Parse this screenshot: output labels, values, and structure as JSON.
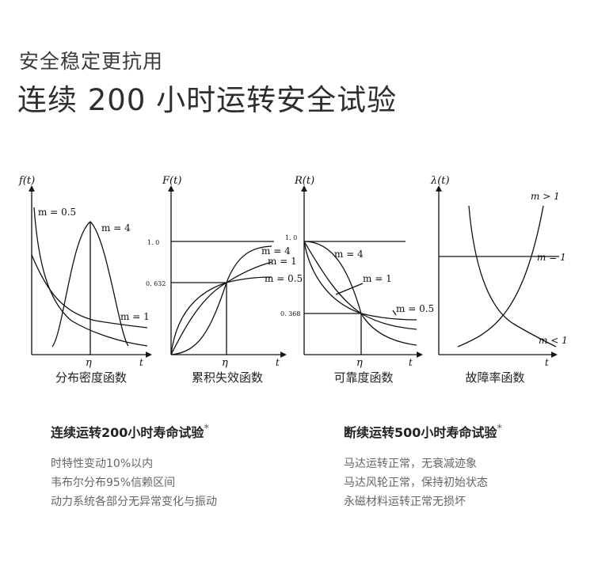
{
  "header": {
    "subtitle": "安全稳定更抗用",
    "title": "连续 200 小时运转安全试验"
  },
  "charts": [
    {
      "y_label": "f(t)",
      "x_label": "t",
      "x_tick": "η",
      "caption": "分布密度函数",
      "curve_labels": [
        "m = 0.5",
        "m = 4",
        "m = 1"
      ]
    },
    {
      "y_label": "F(t)",
      "x_label": "t",
      "x_tick": "η",
      "caption": "累积失效函数",
      "y_ticks": [
        "1. 0",
        "0. 632"
      ],
      "curve_labels": [
        "m = 4",
        "m = 1",
        "m = 0.5"
      ]
    },
    {
      "y_label": "R(t)",
      "x_label": "t",
      "x_tick": "η",
      "caption": "可靠度函数",
      "y_ticks": [
        "1. 0",
        "0. 368"
      ],
      "curve_labels": [
        "m = 4",
        "m = 1",
        "m = 0.5"
      ]
    },
    {
      "y_label": "λ(t)",
      "x_label": "t",
      "caption": "故障率函数",
      "curve_labels": [
        "m > 1",
        "m = 1",
        "m < 1"
      ]
    }
  ],
  "tests": [
    {
      "heading": "连续运转200小时寿命试验",
      "items": [
        "时特性变动10%以内",
        "韦布尔分布95%信赖区间",
        "动力系统各部分无异常变化与振动"
      ]
    },
    {
      "heading": "断续运转500小时寿命试验",
      "items": [
        "马达运转正常，无衰减迹象",
        "马达风轮正常，保持初始状态",
        "永磁材料运转正常无损坏"
      ]
    }
  ],
  "heading_mark": "*"
}
